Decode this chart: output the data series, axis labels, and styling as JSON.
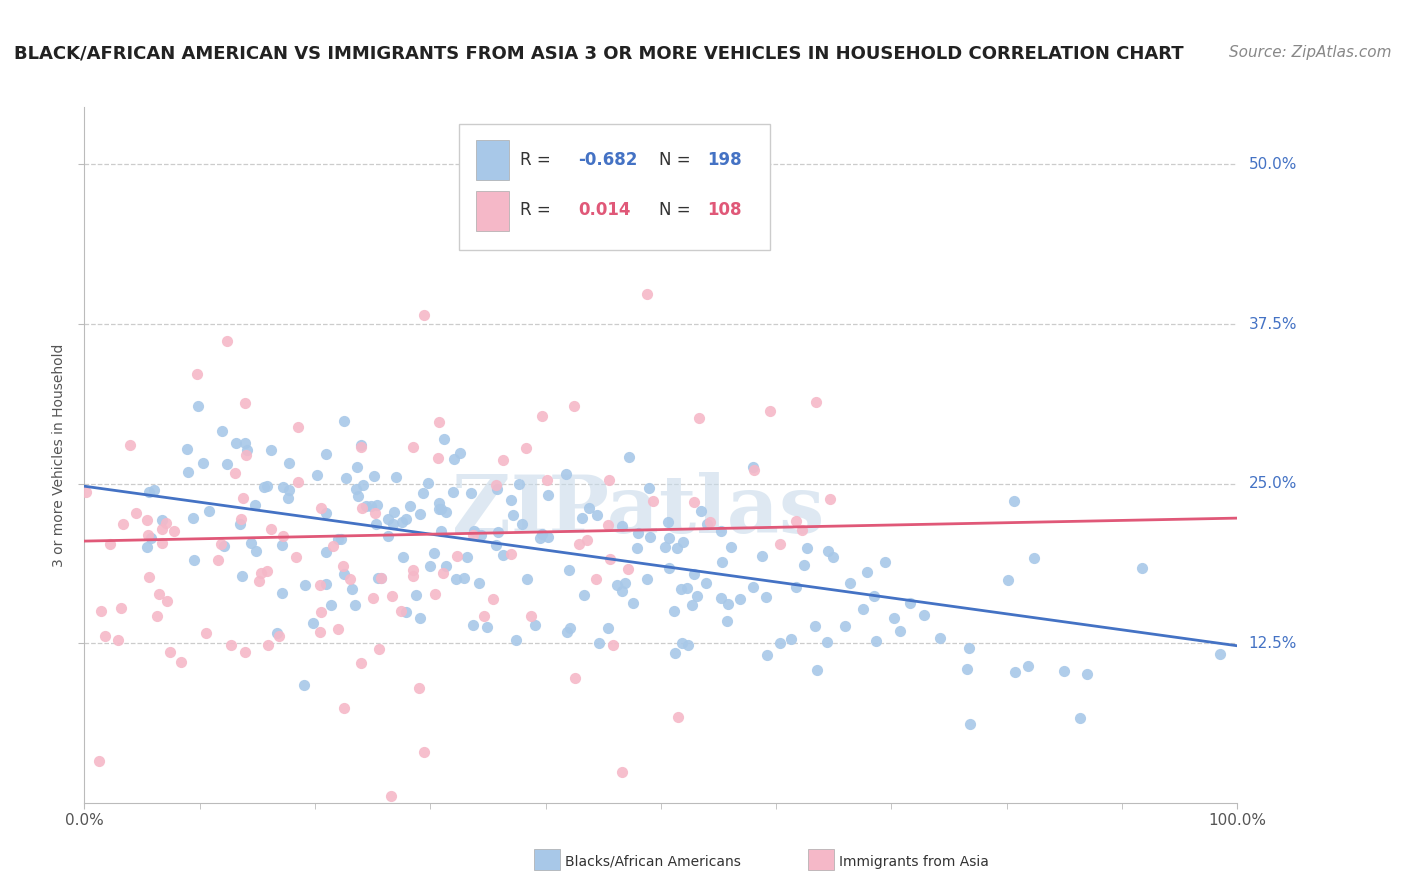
{
  "title": "BLACK/AFRICAN AMERICAN VS IMMIGRANTS FROM ASIA 3 OR MORE VEHICLES IN HOUSEHOLD CORRELATION CHART",
  "source": "Source: ZipAtlas.com",
  "ylabel": "3 or more Vehicles in Household",
  "xlim": [
    0.0,
    1.0
  ],
  "ylim": [
    0.0,
    0.545
  ],
  "yticks": [
    0.125,
    0.25,
    0.375,
    0.5
  ],
  "ytick_labels": [
    "12.5%",
    "25.0%",
    "37.5%",
    "50.0%"
  ],
  "color_blue": "#a8c8e8",
  "color_pink": "#f5b8c8",
  "line_color_blue": "#4472c4",
  "line_color_pink": "#e05878",
  "legend_label1": "Blacks/African Americans",
  "legend_label2": "Immigrants from Asia",
  "watermark": "ZIPatlas",
  "title_fontsize": 13,
  "source_fontsize": 11,
  "label_fontsize": 10,
  "tick_fontsize": 11,
  "seed": 42,
  "blue_slope": -0.125,
  "blue_intercept": 0.248,
  "pink_slope": 0.018,
  "pink_intercept": 0.205,
  "N_blue": 198,
  "N_pink": 108
}
